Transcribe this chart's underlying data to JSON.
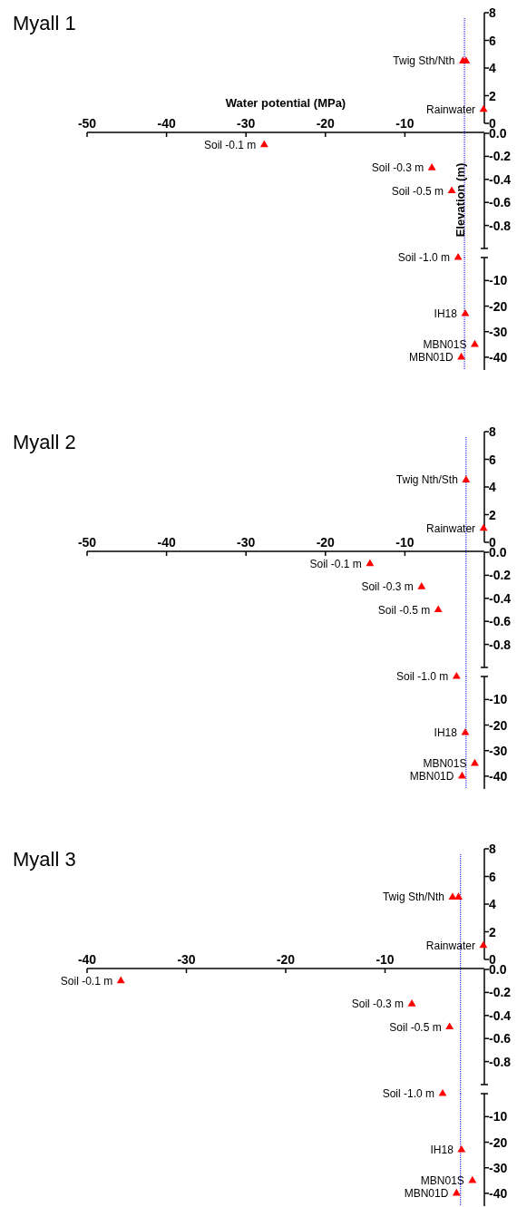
{
  "chart_data": [
    {
      "type": "scatter",
      "title": "Myall 1",
      "xlabel": "Water potential (MPa)",
      "x": [
        -2.7,
        -2.3,
        -0.1
      ],
      "values": [
        4.5,
        4.5,
        1.0
      ],
      "color": "#ff0000",
      "marker": "triangle",
      "xlim": [
        -50,
        0
      ],
      "xticks": [
        -50,
        -40,
        -30,
        -20,
        -10
      ],
      "ylim": [
        0,
        8
      ],
      "yticks": [
        0,
        2,
        4,
        6,
        8
      ],
      "ref_lines": [
        {
          "axis": "x",
          "value": -2.5,
          "color": "#0000ff",
          "line_style": "dotted"
        }
      ],
      "annotations": [
        {
          "text": "Twig Sth/Nth",
          "x": -2.7,
          "y": 4.5
        },
        {
          "text": "Rainwater",
          "x": -0.1,
          "y": 1.0
        }
      ]
    },
    {
      "type": "scatter",
      "ylabel": "Elevation (m)",
      "x": [
        -27.7,
        -6.6,
        -4.1
      ],
      "values": [
        -0.1,
        -0.3,
        -0.5
      ],
      "color": "#ff0000",
      "marker": "triangle",
      "xlim": [
        -50,
        0
      ],
      "ylim": [
        -1,
        0
      ],
      "yticks": [
        {
          "value": 0,
          "label": "0.0"
        },
        {
          "value": -0.2,
          "label": "-0.2"
        },
        {
          "value": -0.4,
          "label": "-0.4"
        },
        {
          "value": -0.6,
          "label": "-0.6"
        },
        {
          "value": -0.8,
          "label": "-0.8"
        },
        {
          "value": -1,
          "label": null
        }
      ],
      "tick_labels": "y",
      "ref_lines": [
        {
          "axis": "x",
          "value": -2.5,
          "color": "#0000ff",
          "line_style": "dotted"
        }
      ],
      "annotations": [
        {
          "text": "Soil -0.1 m",
          "x": -27.7,
          "y": -0.1
        },
        {
          "text": "Soil -0.3 m",
          "x": -6.6,
          "y": -0.3
        },
        {
          "text": "Soil -0.5 m",
          "x": -4.1,
          "y": -0.5
        }
      ]
    },
    {
      "type": "scatter",
      "x": [
        -3.3,
        -2.4,
        -1.2,
        -2.9
      ],
      "values": [
        -1,
        -23,
        -35,
        -40
      ],
      "color": "#ff0000",
      "marker": "triangle",
      "xlim": [
        -50,
        0
      ],
      "ylim": [
        -45,
        -1
      ],
      "yticks": [
        {
          "value": -1,
          "label": null
        },
        -10,
        -20,
        -30,
        -40
      ],
      "tick_labels": "y",
      "ref_lines": [
        {
          "axis": "x",
          "value": -2.5,
          "color": "#0000ff",
          "line_style": "dotted"
        }
      ],
      "annotations": [
        {
          "text": "Soil -1.0 m",
          "x": -3.3,
          "y": -1
        },
        {
          "text": "IH18",
          "x": -2.4,
          "y": -23
        },
        {
          "text": "MBN01S",
          "x": -1.2,
          "y": -35
        },
        {
          "text": "MBN01D",
          "x": -2.9,
          "y": -40
        }
      ]
    },
    {
      "type": "scatter",
      "title": "Myall 2",
      "x": [
        -2.3,
        -0.1
      ],
      "values": [
        4.5,
        1.0
      ],
      "color": "#ff0000",
      "marker": "triangle",
      "xlim": [
        -50,
        0
      ],
      "xticks": [
        -50,
        -40,
        -30,
        -20,
        -10
      ],
      "ylim": [
        0,
        8
      ],
      "yticks": [
        0,
        2,
        4,
        6,
        8
      ],
      "ref_lines": [
        {
          "axis": "x",
          "value": -2.3,
          "color": "#0000ff",
          "line_style": "dotted"
        }
      ],
      "annotations": [
        {
          "text": "Twig Nth/Sth",
          "x": -2.3,
          "y": 4.5
        },
        {
          "text": "Rainwater",
          "x": -0.1,
          "y": 1.0
        }
      ]
    },
    {
      "type": "scatter",
      "x": [
        -14.4,
        -7.9,
        -5.8
      ],
      "values": [
        -0.1,
        -0.3,
        -0.5
      ],
      "color": "#ff0000",
      "marker": "triangle",
      "xlim": [
        -50,
        0
      ],
      "ylim": [
        -1,
        0
      ],
      "yticks": [
        {
          "value": 0,
          "label": "0.0"
        },
        {
          "value": -0.2,
          "label": "-0.2"
        },
        {
          "value": -0.4,
          "label": "-0.4"
        },
        {
          "value": -0.6,
          "label": "-0.6"
        },
        {
          "value": -0.8,
          "label": "-0.8"
        },
        {
          "value": -1,
          "label": null
        }
      ],
      "tick_labels": "y",
      "ref_lines": [
        {
          "axis": "x",
          "value": -2.3,
          "color": "#0000ff",
          "line_style": "dotted"
        }
      ],
      "annotations": [
        {
          "text": "Soil -0.1 m",
          "x": -14.4,
          "y": -0.1
        },
        {
          "text": "Soil -0.3 m",
          "x": -7.9,
          "y": -0.3
        },
        {
          "text": "Soil -0.5 m",
          "x": -5.8,
          "y": -0.5
        }
      ]
    },
    {
      "type": "scatter",
      "x": [
        -3.5,
        -2.4,
        -1.2,
        -2.8
      ],
      "values": [
        -1,
        -23,
        -35,
        -40
      ],
      "color": "#ff0000",
      "marker": "triangle",
      "xlim": [
        -50,
        0
      ],
      "ylim": [
        -45,
        -1
      ],
      "yticks": [
        {
          "value": -1,
          "label": null
        },
        -10,
        -20,
        -30,
        -40
      ],
      "tick_labels": "y",
      "ref_lines": [
        {
          "axis": "x",
          "value": -2.3,
          "color": "#0000ff",
          "line_style": "dotted"
        }
      ],
      "annotations": [
        {
          "text": "Soil -1.0 m",
          "x": -3.5,
          "y": -1
        },
        {
          "text": "IH18",
          "x": -2.4,
          "y": -23
        },
        {
          "text": "MBN01S",
          "x": -1.2,
          "y": -35
        },
        {
          "text": "MBN01D",
          "x": -2.8,
          "y": -40
        }
      ]
    },
    {
      "type": "scatter",
      "title": "Myall 3",
      "x": [
        -3.2,
        -2.6,
        -0.1
      ],
      "values": [
        4.5,
        4.5,
        1.0
      ],
      "color": "#ff0000",
      "marker": "triangle",
      "xlim": [
        -40,
        0
      ],
      "xticks": [
        -40,
        -30,
        -20,
        -10
      ],
      "ylim": [
        0,
        8
      ],
      "yticks": [
        0,
        2,
        4,
        6,
        8
      ],
      "ref_lines": [
        {
          "axis": "x",
          "value": -2.4,
          "color": "#0000ff",
          "line_style": "dotted"
        }
      ],
      "annotations": [
        {
          "text": "Twig Sth/Nth",
          "x": -3.2,
          "y": 4.5
        },
        {
          "text": "Rainwater",
          "x": -0.1,
          "y": 1.0
        }
      ]
    },
    {
      "type": "scatter",
      "x": [
        -36.6,
        -7.3,
        -3.5
      ],
      "values": [
        -0.1,
        -0.3,
        -0.5
      ],
      "color": "#ff0000",
      "marker": "triangle",
      "xlim": [
        -40,
        0
      ],
      "ylim": [
        -1,
        0
      ],
      "yticks": [
        {
          "value": 0,
          "label": "0.0"
        },
        {
          "value": -0.2,
          "label": "-0.2"
        },
        {
          "value": -0.4,
          "label": "-0.4"
        },
        {
          "value": -0.6,
          "label": "-0.6"
        },
        {
          "value": -0.8,
          "label": "-0.8"
        },
        {
          "value": -1,
          "label": null
        }
      ],
      "tick_labels": "y",
      "ref_lines": [
        {
          "axis": "x",
          "value": -2.4,
          "color": "#0000ff",
          "line_style": "dotted"
        }
      ],
      "annotations": [
        {
          "text": "Soil -0.1 m",
          "x": -36.6,
          "y": -0.1
        },
        {
          "text": "Soil -0.3 m",
          "x": -7.3,
          "y": -0.3
        },
        {
          "text": "Soil -0.5 m",
          "x": -3.5,
          "y": -0.5
        }
      ]
    },
    {
      "type": "scatter",
      "x": [
        -4.2,
        -2.3,
        -1.2,
        -2.8
      ],
      "values": [
        -1,
        -23,
        -35,
        -40
      ],
      "color": "#ff0000",
      "marker": "triangle",
      "xlim": [
        -40,
        0
      ],
      "ylim": [
        -45,
        -1
      ],
      "yticks": [
        {
          "value": -1,
          "label": null
        },
        -10,
        -20,
        -30,
        -40
      ],
      "tick_labels": "y",
      "ref_lines": [
        {
          "axis": "x",
          "value": -2.4,
          "color": "#0000ff",
          "line_style": "dotted"
        }
      ],
      "annotations": [
        {
          "text": "Soil -1.0 m",
          "x": -4.2,
          "y": -1
        },
        {
          "text": "IH18",
          "x": -2.3,
          "y": -23
        },
        {
          "text": "MBN01S",
          "x": -1.2,
          "y": -35
        },
        {
          "text": "MBN01D",
          "x": -2.8,
          "y": -40
        }
      ]
    }
  ]
}
